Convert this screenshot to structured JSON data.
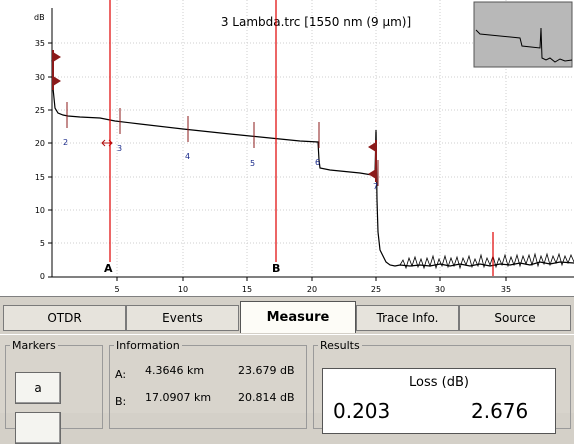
{
  "plot": {
    "title": "3 Lambda.trc [1550 nm (9 μm)]",
    "y_unit": "dB",
    "y_ticks": [
      "35",
      "30",
      "25",
      "20",
      "15",
      "10",
      "5",
      "0"
    ],
    "x_ticks": [
      "5",
      "10",
      "15",
      "20",
      "25",
      "30",
      "35"
    ],
    "event_numbers": [
      "2",
      "3",
      "4",
      "5",
      "6",
      "7"
    ],
    "marker_labels": {
      "a": "A",
      "b": "B"
    }
  },
  "tabs": [
    "OTDR",
    "Events",
    "Measure",
    "Trace Info.",
    "Source"
  ],
  "active_tab": "Measure",
  "markers": {
    "legend": "Markers",
    "button_a": "a"
  },
  "information": {
    "legend": "Information",
    "rows": [
      {
        "label": "A:",
        "distance": "4.3646 km",
        "level": "23.679 dB"
      },
      {
        "label": "B:",
        "distance": "17.0907 km",
        "level": "20.814 dB"
      }
    ]
  },
  "results": {
    "legend": "Results",
    "header": "Loss (dB)",
    "value_1": "0.203",
    "value_2": "2.676"
  },
  "colors": {
    "trace": "#000000",
    "marker_line": "#e00000",
    "event_arrow": "#8b1a1a",
    "event_number": "#1a2a8a"
  }
}
